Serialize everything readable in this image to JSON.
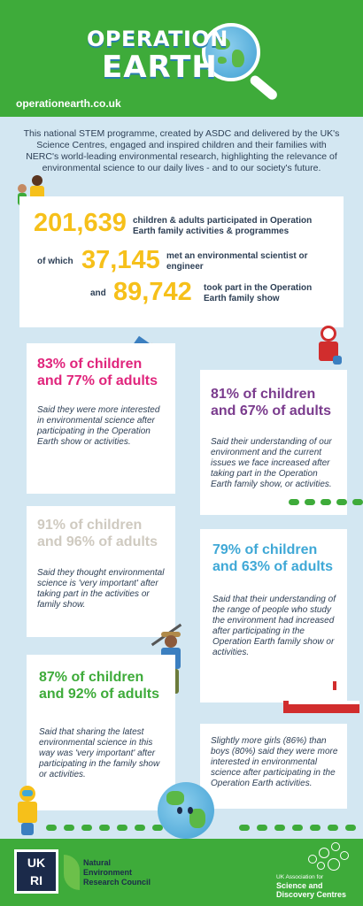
{
  "header": {
    "logo_line1": "OPERATION",
    "logo_line2": "EARTH",
    "url": "operationearth.co.uk"
  },
  "intro": "This national STEM programme, created by ASDC and delivered by the UK's Science Centres, engaged and inspired children and their families with NERC's world-leading environmental research, highlighting the relevance of environmental science to our daily lives - and to our society's future.",
  "stats": {
    "total_value": "201,639",
    "total_text": "children & adults participated in Operation Earth family activities & programmes",
    "met_prefix": "of which",
    "met_value": "37,145",
    "met_text": "met an environmental scientist or engineer",
    "show_prefix": "and",
    "show_value": "89,742",
    "show_text": "took part in the Operation Earth family show"
  },
  "cards": [
    {
      "headline": "83% of children and 77% of adults",
      "color": "#e0257c",
      "text": "Said they were more interested in environmental science after participating in the Operation Earth show or activities."
    },
    {
      "headline": "81% of children and 67% of adults",
      "color": "#7a3b8d",
      "text": "Said their understanding of our environment and the current issues we face increased after taking part in the Operation Earth family show, or activities."
    },
    {
      "headline": "91% of children and 96% of adults",
      "color": "#cfcac0",
      "text": "Said they thought environmental science is 'very important' after taking part in the activities or family show."
    },
    {
      "headline": "79% of children and 63% of adults",
      "color": "#3fa8d6",
      "text": "Said that their understanding of the range of people who study the environment had increased after participating in the Operation Earth family show or activities."
    },
    {
      "headline": "87% of children and 92% of adults",
      "color": "#3eab3a",
      "text": "Said that sharing the latest environmental science in this way was 'very important' after participating in the family show or activities."
    },
    {
      "headline": "",
      "color": "#2d3f55",
      "text": "Slightly more girls (86%) than boys (80%) said they were more interested in environmental science after participating in the Operation Earth activities."
    }
  ],
  "footer": {
    "ukri_line1": "UK",
    "ukri_line2": "RI",
    "nerc": [
      "Natural",
      "Environment",
      "Research Council"
    ],
    "asdc_small": "UK Association for",
    "asdc_big": [
      "Science and",
      "Discovery Centres"
    ]
  },
  "colors": {
    "green": "#3eab3a",
    "yellow": "#f6c01a",
    "navy": "#2d3f55",
    "sky": "#d3e7f2"
  }
}
